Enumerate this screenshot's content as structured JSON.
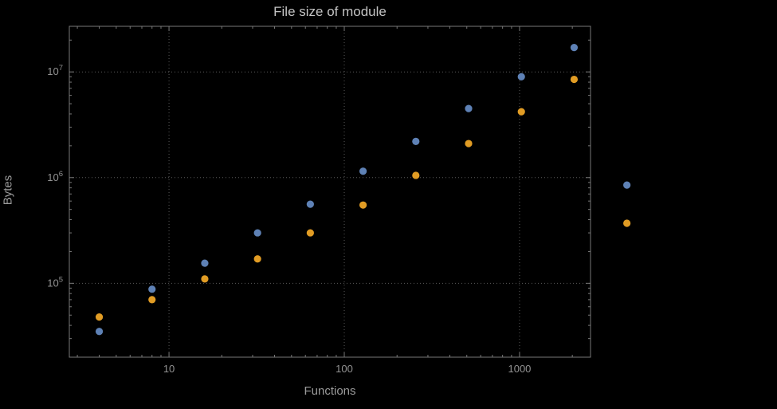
{
  "title": "File size of module",
  "axis": {
    "x_label": "Functions",
    "y_label": "Bytes"
  },
  "colors": {
    "background": "#000000",
    "frame": "#787878",
    "grid": "#5a5a5a",
    "title_text": "#c4c4c4",
    "axis_text": "#9c9c9c",
    "tick_text": "#929292",
    "series_blue": "#5e81b5",
    "series_orange": "#e19c24"
  },
  "chart_data": {
    "type": "scatter",
    "title": "File size of module",
    "xlabel": "Functions",
    "ylabel": "Bytes",
    "xscale": "log",
    "yscale": "log",
    "grid": true,
    "xlim": [
      2.7,
      2540
    ],
    "ylim": [
      20000,
      27000000
    ],
    "x_ticks": [
      10,
      100,
      1000
    ],
    "x_tick_labels": [
      "10",
      "100",
      "1000"
    ],
    "y_ticks": [
      100000,
      1000000,
      10000000
    ],
    "y_tick_labels": [
      "10^5",
      "10^6",
      "10^7"
    ],
    "x": [
      4,
      8,
      16,
      32,
      64,
      128,
      256,
      512,
      1024,
      2048,
      4096
    ],
    "series": [
      {
        "name": "series-blue",
        "color": "#5e81b5",
        "values": [
          35000,
          88000,
          155000,
          300000,
          560000,
          1150000,
          2200000,
          4500000,
          9000000,
          17000000,
          850000
        ]
      },
      {
        "name": "series-orange",
        "color": "#e19c24",
        "values": [
          48000,
          70000,
          110000,
          170000,
          300000,
          550000,
          1050000,
          2100000,
          4200000,
          8500000,
          370000
        ]
      }
    ]
  }
}
